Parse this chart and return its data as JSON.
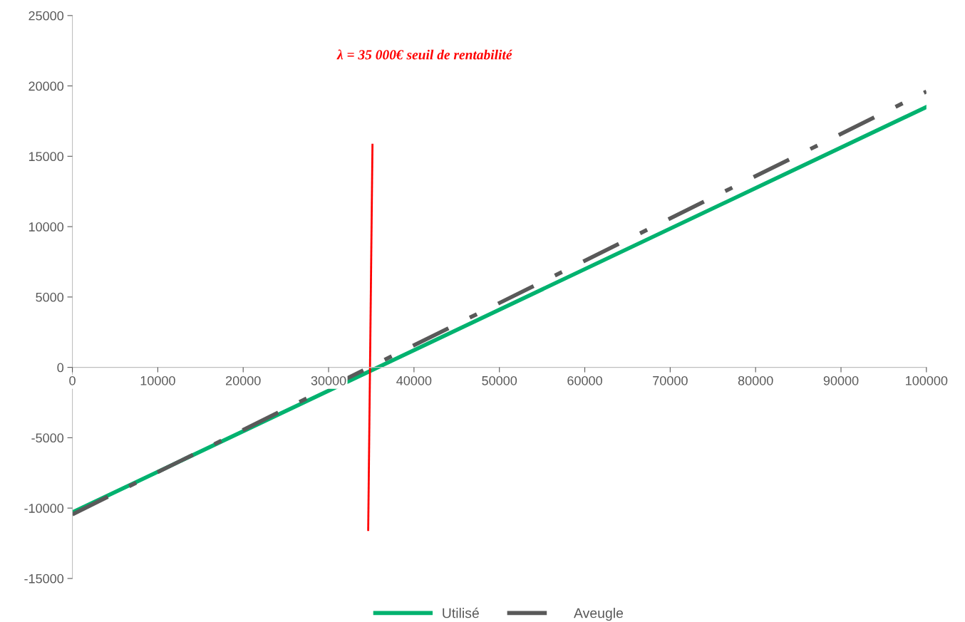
{
  "chart_data": {
    "type": "line",
    "x": [
      0,
      100000
    ],
    "series": [
      {
        "name": "Utilisé",
        "color": "#00b26f",
        "values": [
          -10300,
          18500
        ],
        "line_style": "solid"
      },
      {
        "name": "Aveugle",
        "color": "#595959",
        "values": [
          -10450,
          19600
        ],
        "line_style": "dashdot"
      },
      {
        "color": "#ff0000",
        "x": [
          35140,
          34640
        ],
        "values": [
          15820,
          -11560
        ],
        "line_style": "solid"
      }
    ],
    "annotations": [
      "λ = 35 000€ seuil de rentabilité"
    ],
    "xlim": [
      0,
      100000
    ],
    "xticks": [
      0,
      10000,
      20000,
      30000,
      40000,
      50000,
      60000,
      70000,
      80000,
      90000,
      100000
    ],
    "ylim": [
      -15000,
      25000
    ],
    "yticks": [
      -15000,
      -10000,
      -5000,
      0,
      5000,
      10000,
      15000,
      20000,
      25000
    ],
    "grid": false,
    "legend": "bottom",
    "marker": "none"
  }
}
